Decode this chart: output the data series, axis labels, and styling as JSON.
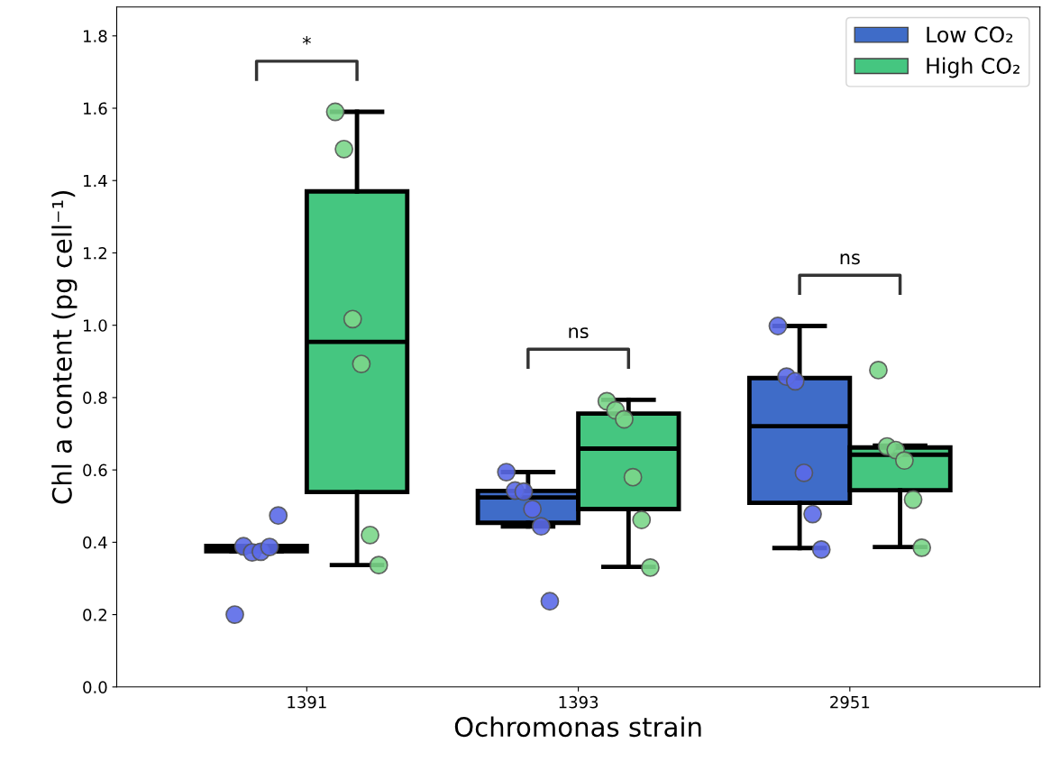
{
  "chart_data": {
    "type": "box",
    "xlabel": "Ochromonas strain",
    "ylabel": "Chl a content (pg cell⁻¹)",
    "categories": [
      "1391",
      "1393",
      "2951"
    ],
    "ylim": [
      0,
      1.88
    ],
    "yticks": [
      {
        "value": 0,
        "label": "0.0"
      },
      {
        "value": 0.2,
        "label": "0.2"
      },
      {
        "value": 0.4,
        "label": "0.4"
      },
      {
        "value": 0.6,
        "label": "0.6"
      },
      {
        "value": 0.8,
        "label": "0.8"
      },
      {
        "value": 1.0,
        "label": "1.0"
      },
      {
        "value": 1.2,
        "label": "1.2"
      },
      {
        "value": 1.4,
        "label": "1.4"
      },
      {
        "value": 1.6,
        "label": "1.6"
      },
      {
        "value": 1.8,
        "label": "1.8"
      }
    ],
    "legend": "top right",
    "grid": false,
    "series": [
      {
        "name": "Low CO₂",
        "color": "#3f6cc8",
        "boxes": [
          {
            "low": 0.375,
            "q1": 0.375,
            "median": 0.38,
            "q3": 0.39,
            "high": 0.39
          },
          {
            "low": 0.444,
            "q1": 0.454,
            "median": 0.524,
            "q3": 0.542,
            "high": 0.594
          },
          {
            "low": 0.384,
            "q1": 0.509,
            "median": 0.721,
            "q3": 0.854,
            "high": 0.998
          }
        ]
      },
      {
        "name": "High CO₂",
        "color": "#45c680",
        "boxes": [
          {
            "low": 0.337,
            "q1": 0.539,
            "median": 0.954,
            "q3": 1.37,
            "high": 1.59
          },
          {
            "low": 0.332,
            "q1": 0.492,
            "median": 0.659,
            "q3": 0.756,
            "high": 0.794
          },
          {
            "low": 0.387,
            "q1": 0.544,
            "median": 0.642,
            "q3": 0.662,
            "high": 0.667
          }
        ]
      },
      {
        "type": "scatter",
        "color": "#5b6ae8",
        "values": [
          0.2,
          0.594,
          0.998
        ]
      },
      {
        "type": "scatter",
        "color": "#5b6ae8",
        "values": [
          0.389,
          0.543,
          0.858
        ]
      },
      {
        "type": "scatter",
        "color": "#5b6ae8",
        "values": [
          0.372,
          0.54,
          0.845
        ]
      },
      {
        "type": "scatter",
        "color": "#5b6ae8",
        "values": [
          0.374,
          0.492,
          0.592
        ]
      },
      {
        "type": "scatter",
        "color": "#5b6ae8",
        "values": [
          0.387,
          0.444,
          0.478
        ]
      },
      {
        "type": "scatter",
        "color": "#5b6ae8",
        "values": [
          0.474,
          0.237,
          0.38
        ]
      },
      {
        "type": "scatter",
        "color": "#7bd68a",
        "values": [
          1.59,
          0.79,
          0.876
        ]
      },
      {
        "type": "scatter",
        "color": "#7bd68a",
        "values": [
          1.487,
          0.765,
          0.665
        ]
      },
      {
        "type": "scatter",
        "color": "#7bd68a",
        "values": [
          1.017,
          0.74,
          0.655
        ]
      },
      {
        "type": "scatter",
        "color": "#7bd68a",
        "values": [
          0.893,
          0.58,
          0.626
        ]
      },
      {
        "type": "scatter",
        "color": "#7bd68a",
        "values": [
          0.42,
          0.462,
          0.518
        ]
      },
      {
        "type": "scatter",
        "color": "#7bd68a",
        "values": [
          0.337,
          0.33,
          0.385
        ]
      }
    ],
    "annotations": [
      "*",
      "ns",
      "ns"
    ]
  }
}
